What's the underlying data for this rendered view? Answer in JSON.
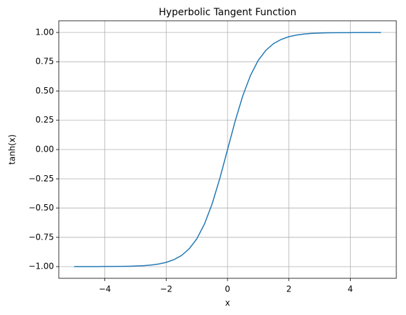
{
  "chart_data": {
    "type": "line",
    "title": "Hyperbolic Tangent Function",
    "xlabel": "x",
    "ylabel": "tanh(x)",
    "x": [
      -5,
      -4.75,
      -4.5,
      -4.25,
      -4,
      -3.75,
      -3.5,
      -3.25,
      -3,
      -2.75,
      -2.5,
      -2.25,
      -2,
      -1.75,
      -1.5,
      -1.25,
      -1,
      -0.75,
      -0.5,
      -0.25,
      0,
      0.25,
      0.5,
      0.75,
      1,
      1.25,
      1.5,
      1.75,
      2,
      2.25,
      2.5,
      2.75,
      3,
      3.25,
      3.5,
      3.75,
      4,
      4.25,
      4.5,
      4.75,
      5
    ],
    "series": [
      {
        "color": "#1f77b4",
        "values": [
          -1.0,
          -1.0,
          -1.0,
          -1.0,
          -0.999,
          -0.999,
          -0.998,
          -0.997,
          -0.995,
          -0.992,
          -0.987,
          -0.978,
          -0.964,
          -0.941,
          -0.905,
          -0.848,
          -0.762,
          -0.635,
          -0.462,
          -0.245,
          0,
          0.245,
          0.462,
          0.635,
          0.762,
          0.848,
          0.905,
          0.941,
          0.964,
          0.978,
          0.987,
          0.992,
          0.995,
          0.997,
          0.998,
          0.999,
          0.999,
          1.0,
          1.0,
          1.0,
          1.0
        ]
      }
    ],
    "xlim": [
      -5.5,
      5.5
    ],
    "ylim": [
      -1.1,
      1.1
    ],
    "xticks": [
      {
        "value": -4,
        "label": "−4"
      },
      {
        "value": -2,
        "label": "−2"
      },
      0,
      2,
      4
    ],
    "yticks": [
      {
        "value": -1,
        "label": "−1.00"
      },
      {
        "value": -0.75,
        "label": "−0.75"
      },
      {
        "value": -0.5,
        "label": "−0.50"
      },
      {
        "value": -0.25,
        "label": "−0.25"
      },
      {
        "value": 0,
        "label": "0.00"
      },
      0.25,
      {
        "value": 0.5,
        "label": "0.50"
      },
      0.75,
      {
        "value": 1,
        "label": "1.00"
      }
    ],
    "grid": true
  }
}
